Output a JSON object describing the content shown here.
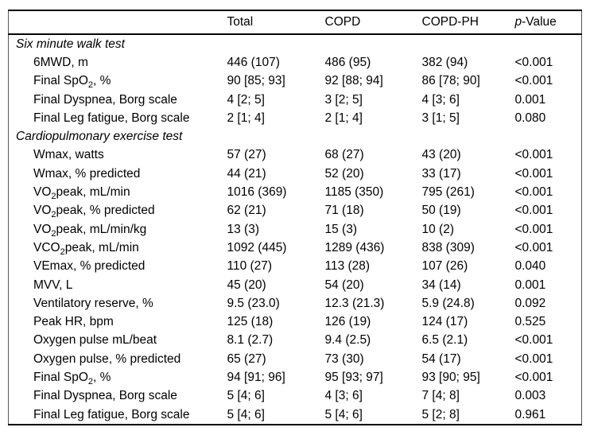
{
  "table": {
    "headers": {
      "label": "",
      "total": "Total",
      "copd": "COPD",
      "copd_ph": "COPD-PH",
      "p_italic": "p",
      "p_rest": "-Value"
    },
    "rows": [
      {
        "section": "Six minute walk test"
      },
      {
        "label": [
          [
            "6MWD, m"
          ]
        ],
        "values": [
          "446 (107)",
          "486 (95)",
          "382 (94)",
          "<0.001"
        ]
      },
      {
        "label": [
          [
            "Final SpO"
          ],
          [
            "2",
            "sub"
          ],
          [
            ", %"
          ]
        ],
        "values": [
          "90 [85; 93]",
          "92 [88; 94]",
          "86 [78; 90]",
          "<0.001"
        ]
      },
      {
        "label": [
          [
            "Final Dyspnea, Borg scale"
          ]
        ],
        "values": [
          "4 [2; 5]",
          "3 [2; 5]",
          "4 [3; 6]",
          "0.001"
        ]
      },
      {
        "label": [
          [
            "Final Leg fatigue, Borg scale"
          ]
        ],
        "values": [
          "2 [1; 4]",
          "2 [1; 4]",
          "3 [1; 5]",
          "0.080"
        ]
      },
      {
        "section": "Cardiopulmonary exercise test"
      },
      {
        "label": [
          [
            "Wmax, watts"
          ]
        ],
        "values": [
          "57 (27)",
          "68 (27)",
          "43 (20)",
          "<0.001"
        ]
      },
      {
        "label": [
          [
            "Wmax, % predicted"
          ]
        ],
        "values": [
          "44 (21)",
          "52 (20)",
          "33 (17)",
          "<0.001"
        ]
      },
      {
        "label": [
          [
            "VO"
          ],
          [
            "2",
            "sub"
          ],
          [
            "peak, mL/min"
          ]
        ],
        "values": [
          "1016 (369)",
          "1185 (350)",
          "795 (261)",
          "<0.001"
        ]
      },
      {
        "label": [
          [
            "VO"
          ],
          [
            "2",
            "sub"
          ],
          [
            "peak, % predicted"
          ]
        ],
        "values": [
          "62 (21)",
          "71 (18)",
          "50 (19)",
          "<0.001"
        ]
      },
      {
        "label": [
          [
            "VO"
          ],
          [
            "2",
            "sub"
          ],
          [
            "peak, mL/min/kg"
          ]
        ],
        "values": [
          "13 (3)",
          "15 (3)",
          "10 (2)",
          "<0.001"
        ]
      },
      {
        "label": [
          [
            "VCO"
          ],
          [
            "2",
            "sub"
          ],
          [
            "peak, mL/min"
          ]
        ],
        "values": [
          "1092 (445)",
          "1289 (436)",
          "838 (309)",
          "<0.001"
        ]
      },
      {
        "label": [
          [
            "VEmax, % predicted"
          ]
        ],
        "values": [
          "110 (27)",
          "113 (28)",
          "107 (26)",
          "0.040"
        ]
      },
      {
        "label": [
          [
            "MVV, L"
          ]
        ],
        "values": [
          "45 (20)",
          "54 (20)",
          "34 (14)",
          "0.001"
        ]
      },
      {
        "label": [
          [
            "Ventilatory reserve, %"
          ]
        ],
        "values": [
          "9.5 (23.0)",
          "12.3 (21.3)",
          "5.9 (24.8)",
          "0.092"
        ]
      },
      {
        "label": [
          [
            "Peak HR, bpm"
          ]
        ],
        "values": [
          "125 (18)",
          "126 (19)",
          "124 (17)",
          "0.525"
        ]
      },
      {
        "label": [
          [
            "Oxygen pulse mL/beat"
          ]
        ],
        "values": [
          "8.1 (2.7)",
          "9.4 (2.5)",
          "6.5 (2.1)",
          "<0.001"
        ]
      },
      {
        "label": [
          [
            "Oxygen pulse, % predicted"
          ]
        ],
        "values": [
          "65 (27)",
          "73 (30)",
          "54 (17)",
          "<0.001"
        ]
      },
      {
        "label": [
          [
            "Final SpO"
          ],
          [
            "2",
            "sub"
          ],
          [
            ", %"
          ]
        ],
        "values": [
          "94 [91; 96]",
          "95 [93; 97]",
          "93 [90; 95]",
          "<0.001"
        ]
      },
      {
        "label": [
          [
            "Final Dyspnea, Borg scale"
          ]
        ],
        "values": [
          "5 [4; 6]",
          "4 [3; 6]",
          "7 [4; 8]",
          "0.003"
        ]
      },
      {
        "label": [
          [
            "Final Leg fatigue, Borg scale"
          ]
        ],
        "values": [
          "5 [4; 6]",
          "5 [4; 6]",
          "5 [2; 8]",
          "0.961"
        ]
      }
    ]
  },
  "colors": {
    "text": "#000000",
    "horizontal_rule": "#000000",
    "side_rule": "#5a5a5a",
    "background": "#ffffff"
  }
}
